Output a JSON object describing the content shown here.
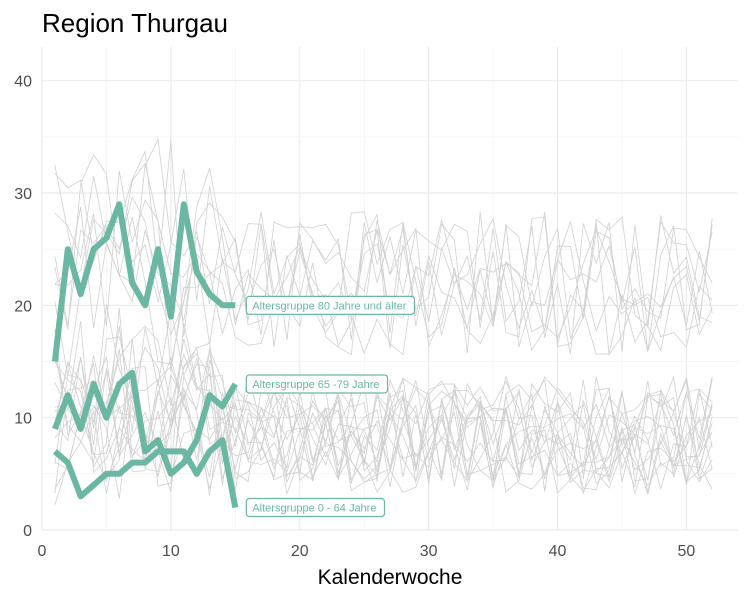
{
  "chart_data": {
    "type": "line",
    "title": "Region Thurgau",
    "xlabel": "Kalenderwoche",
    "ylabel": "",
    "xlim": [
      0,
      54
    ],
    "ylim": [
      0,
      43
    ],
    "x_ticks": [
      0,
      10,
      20,
      30,
      40,
      50
    ],
    "y_ticks": [
      0,
      10,
      20,
      30,
      40
    ],
    "grid": true,
    "legend": "none",
    "highlight_color": "#6ab7a3",
    "background_color": "#d0d0d0",
    "series": [
      {
        "label": "Altersgruppe 80 Jahre und älter",
        "x": [
          1,
          2,
          3,
          4,
          5,
          6,
          7,
          8,
          9,
          10,
          11,
          12,
          13,
          14,
          15
        ],
        "values": [
          15,
          25,
          21,
          25,
          26,
          29,
          22,
          20,
          25,
          19,
          29,
          23,
          21,
          20,
          20
        ]
      },
      {
        "label": "Altersgruppe 65 -79 Jahre",
        "x": [
          1,
          2,
          3,
          4,
          5,
          6,
          7,
          8,
          9,
          10,
          11,
          12,
          13,
          14,
          15
        ],
        "values": [
          9,
          12,
          9,
          13,
          10,
          13,
          14,
          7,
          8,
          5,
          6,
          8,
          12,
          11,
          13
        ]
      },
      {
        "label": "Altersgruppe 0 - 64 Jahre",
        "x": [
          1,
          2,
          3,
          4,
          5,
          6,
          7,
          8,
          9,
          10,
          11,
          12,
          13,
          14,
          15
        ],
        "values": [
          7,
          6,
          3,
          4,
          5,
          5,
          6,
          6,
          7,
          7,
          7,
          5,
          7,
          8,
          2
        ]
      }
    ]
  }
}
